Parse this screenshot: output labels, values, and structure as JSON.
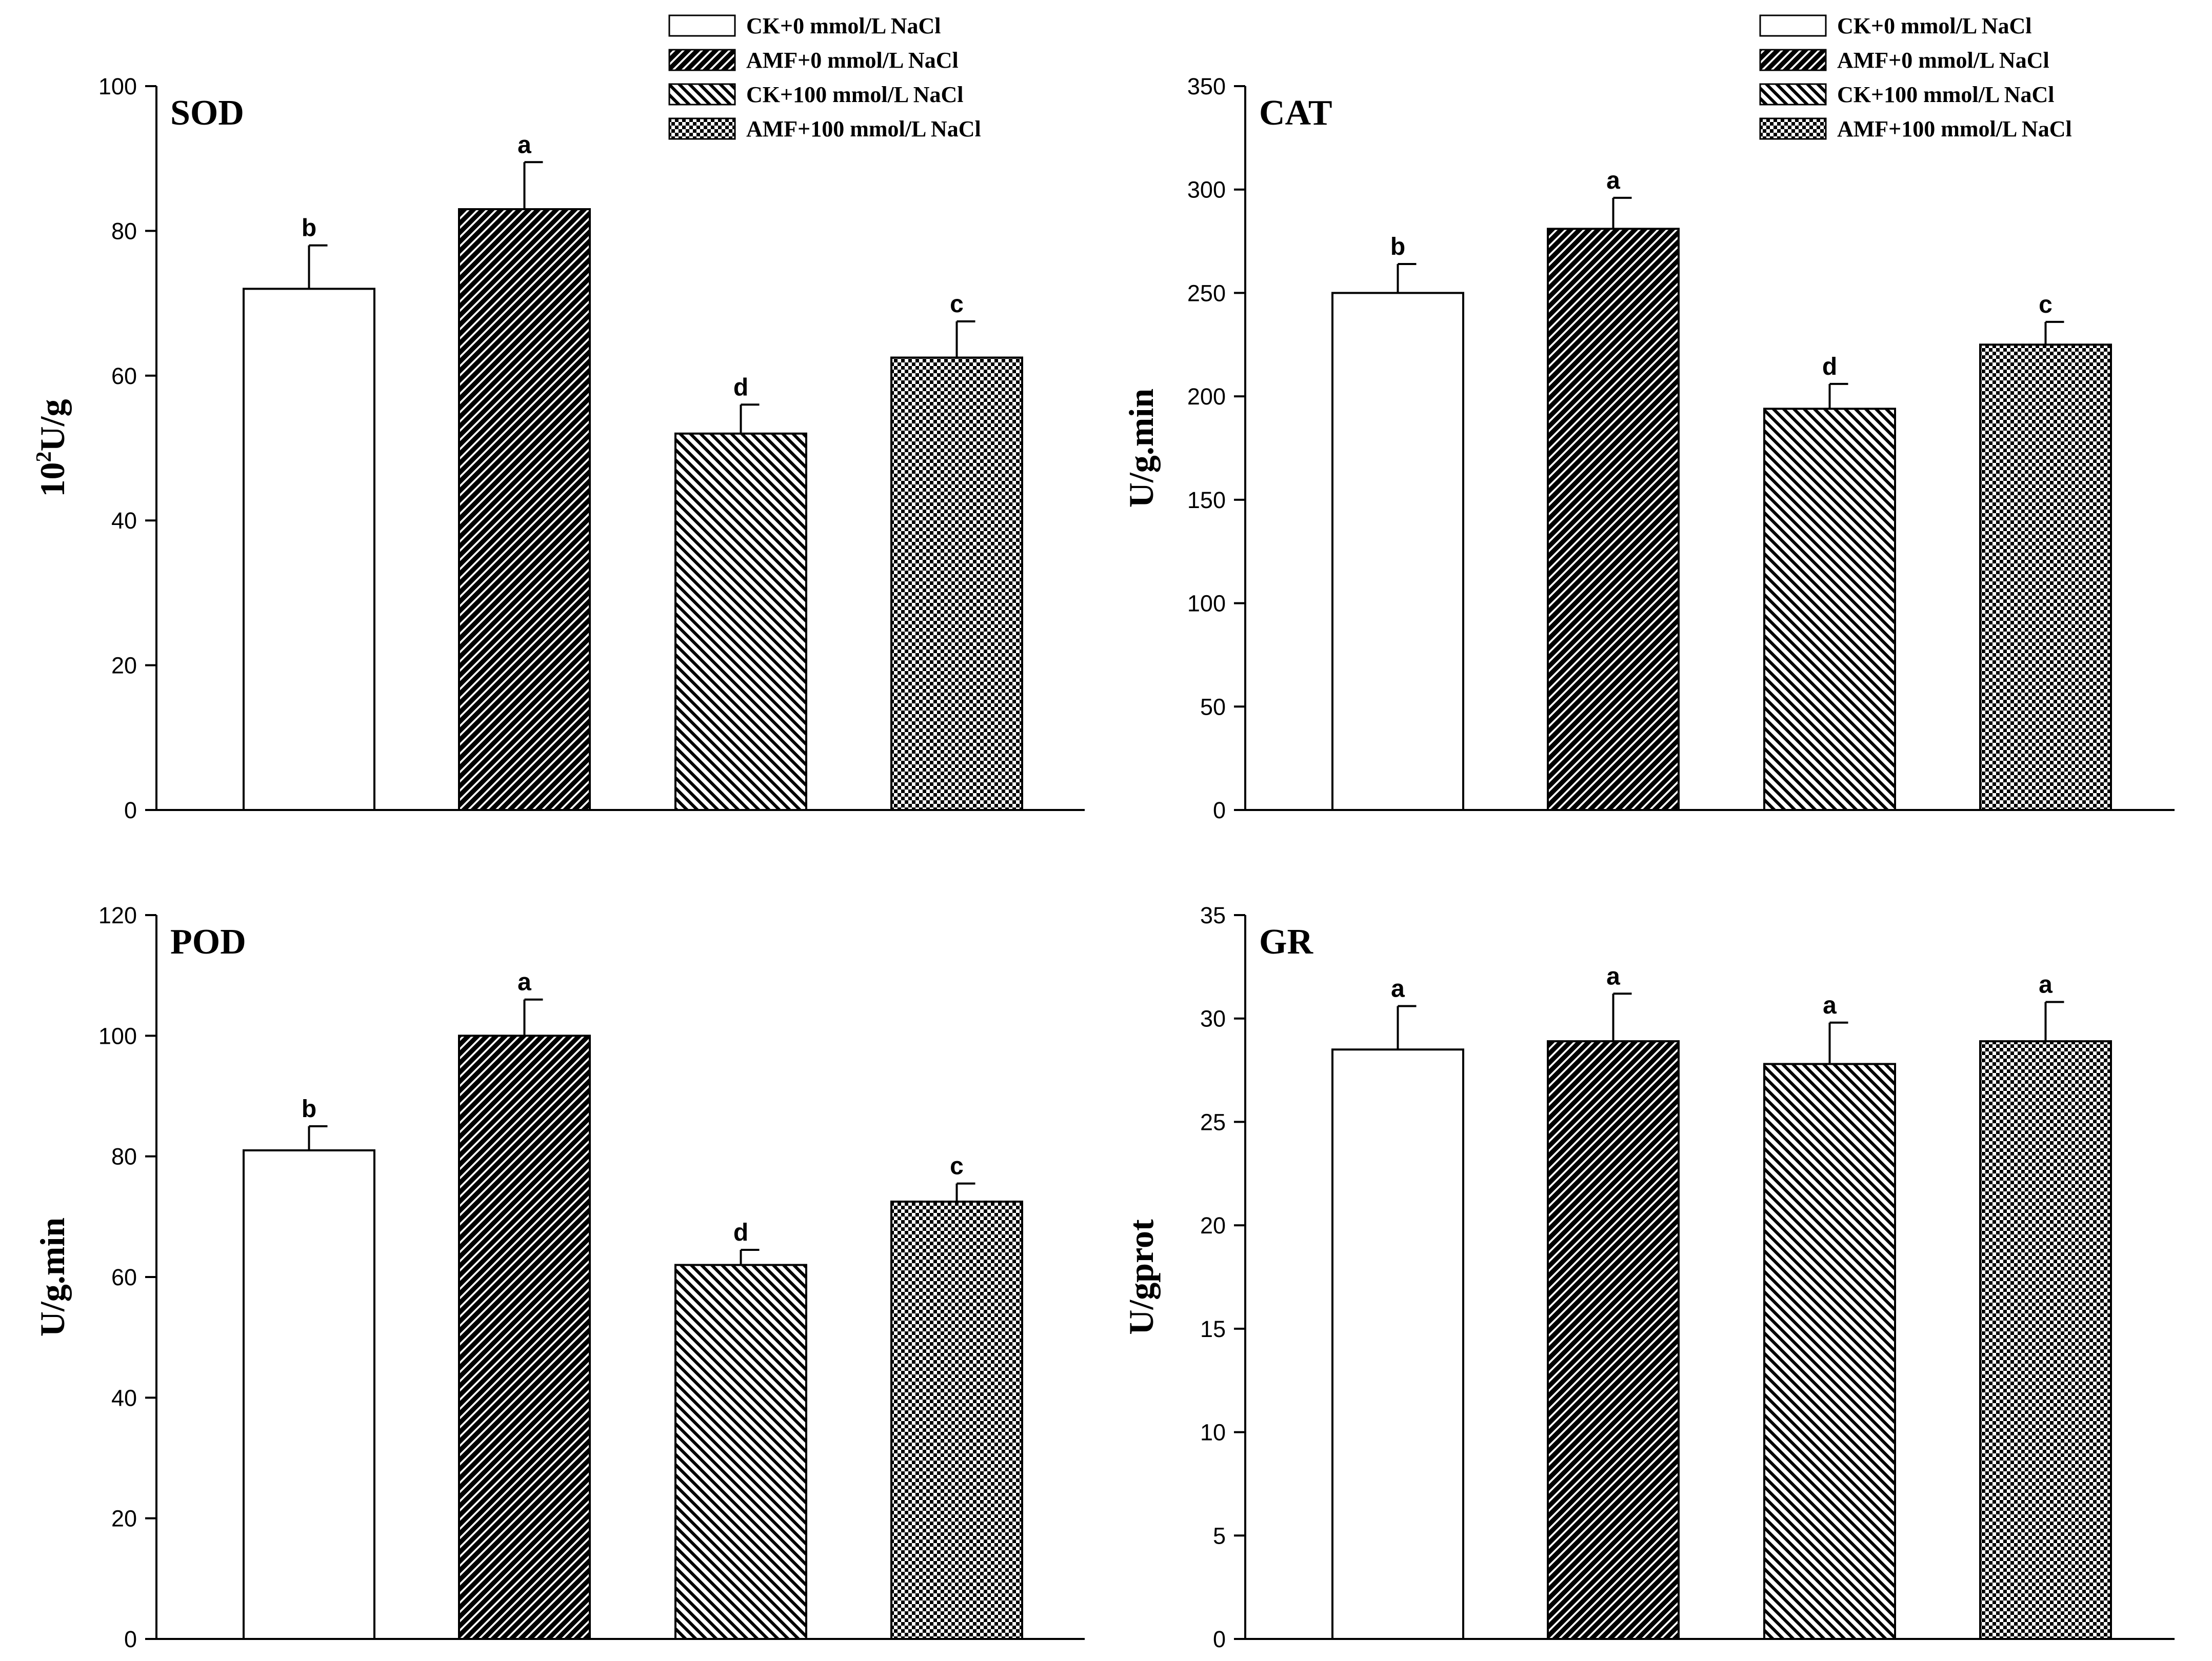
{
  "chart_data": [
    {
      "type": "bar",
      "title": "SOD",
      "ylabel_base": "10",
      "ylabel_sup": "2",
      "ylabel_rest": "U/g",
      "ylim": [
        0,
        100
      ],
      "yticks": [
        "0",
        "20",
        "40",
        "60",
        "80",
        "100"
      ],
      "categories": [
        "CK+0 mmol/L NaCl",
        "AMF+0 mmol/L NaCl",
        "CK+100 mmol/L NaCl",
        "AMF+100 mmol/L NaCl"
      ],
      "values": [
        72,
        83,
        52,
        62.5
      ],
      "errors": [
        6,
        6.5,
        4,
        5
      ],
      "significance": [
        "b",
        "a",
        "d",
        "c"
      ],
      "show_legend": true
    },
    {
      "type": "bar",
      "title": "CAT",
      "ylabel": "U/g.min",
      "ylim": [
        0,
        350
      ],
      "yticks": [
        "0",
        "50",
        "100",
        "150",
        "200",
        "250",
        "300",
        "350"
      ],
      "categories": [
        "CK+0 mmol/L NaCl",
        "AMF+0 mmol/L NaCl",
        "CK+100 mmol/L NaCl",
        "AMF+100 mmol/L NaCl"
      ],
      "values": [
        250,
        281,
        194,
        225
      ],
      "errors": [
        14,
        15,
        12,
        11
      ],
      "significance": [
        "b",
        "a",
        "d",
        "c"
      ],
      "show_legend": true
    },
    {
      "type": "bar",
      "title": "POD",
      "ylabel": "U/g.min",
      "ylim": [
        0,
        120
      ],
      "yticks": [
        "0",
        "20",
        "40",
        "60",
        "80",
        "100",
        "120"
      ],
      "categories": [
        "CK+0 mmol/L NaCl",
        "AMF+0 mmol/L NaCl",
        "CK+100 mmol/L NaCl",
        "AMF+100 mmol/L NaCl"
      ],
      "values": [
        81,
        100,
        62,
        72.5
      ],
      "errors": [
        4,
        6,
        2.5,
        3
      ],
      "significance": [
        "b",
        "a",
        "d",
        "c"
      ],
      "show_legend": false
    },
    {
      "type": "bar",
      "title": "GR",
      "ylabel": "U/gprot",
      "ylim": [
        0,
        35
      ],
      "yticks": [
        "0",
        "5",
        "10",
        "15",
        "20",
        "25",
        "30",
        "35"
      ],
      "categories": [
        "CK+0 mmol/L NaCl",
        "AMF+0 mmol/L NaCl",
        "CK+100 mmol/L NaCl",
        "AMF+100 mmol/L NaCl"
      ],
      "values": [
        28.5,
        28.9,
        27.8,
        28.9
      ],
      "errors": [
        2.1,
        2.3,
        2,
        1.9
      ],
      "significance": [
        "a",
        "a",
        "a",
        "a"
      ],
      "show_legend": false
    }
  ],
  "colors": {
    "axis": "#000000",
    "bar_edge": "#000000",
    "bar_fill": "#ffffff",
    "hatch": "#000000",
    "background": "#ffffff"
  }
}
